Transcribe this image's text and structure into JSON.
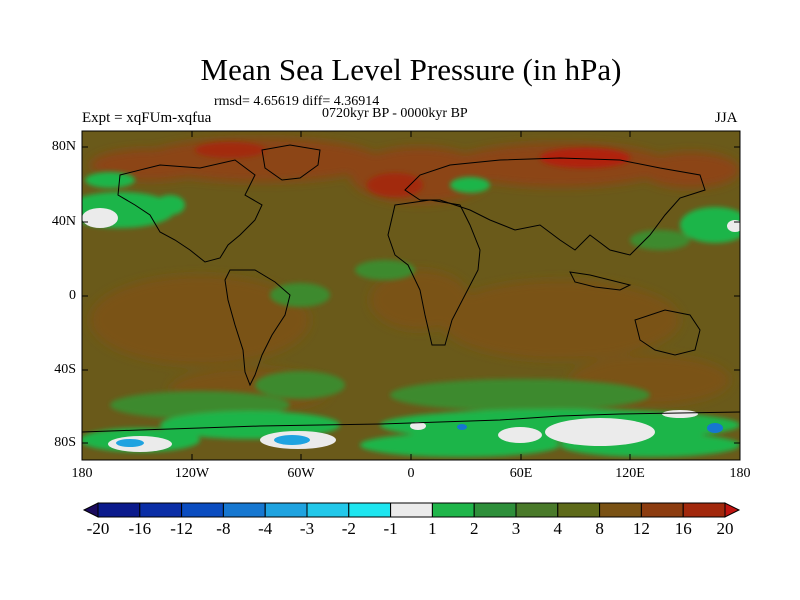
{
  "title": "Mean Sea Level Pressure (in hPa)",
  "stats": "rmsd= 4.65619 diff= 4.36914",
  "period": "0720kyr BP - 0000kyr BP",
  "experiment": "Expt = xqFUm-xqfua",
  "season": "JJA",
  "axes": {
    "latitude_labels": [
      "80N",
      "40N",
      "0",
      "40S",
      "80S"
    ],
    "longitude_labels": [
      "180",
      "120W",
      "60W",
      "0",
      "60E",
      "120E",
      "180"
    ]
  },
  "colorbar": {
    "labels": [
      "-20",
      "-16",
      "-12",
      "-8",
      "-4",
      "-3",
      "-2",
      "-1",
      "1",
      "2",
      "3",
      "4",
      "8",
      "12",
      "16",
      "20"
    ],
    "colors": [
      "#1a0a5c",
      "#0a1a8c",
      "#0a2ea6",
      "#0a4cc0",
      "#1677d0",
      "#1fa3e0",
      "#22c8ea",
      "#1ee6f0",
      "#ebebeb",
      "#1fb54a",
      "#2e8f3a",
      "#4a7a2a",
      "#5e6a1a",
      "#7a5214",
      "#8c3c10",
      "#a2280c",
      "#bf1410"
    ]
  },
  "map_colors": {
    "background": "#6a5a1a",
    "positive_high": "#8c4412",
    "strong_high": "#b02010",
    "green_light": "#1fb54a",
    "green_mid": "#3c8a2e",
    "neutral": "#ebebeb",
    "negative": "#1fa3e0"
  }
}
